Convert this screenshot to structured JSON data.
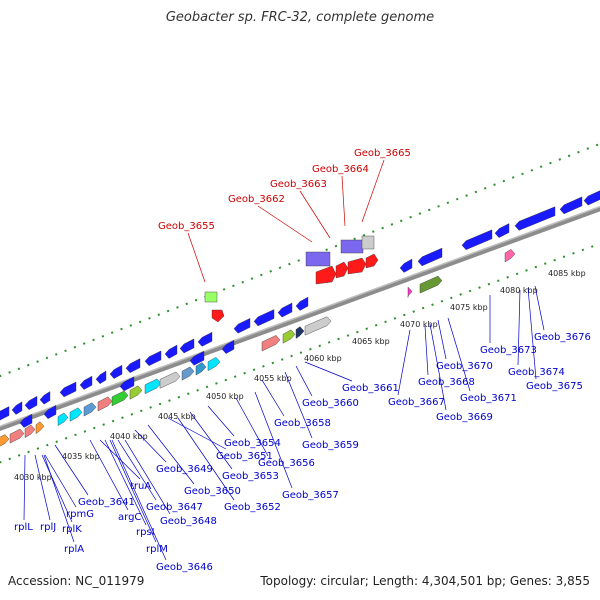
{
  "title": "Geobacter sp. FRC-32, complete genome",
  "footer": {
    "accession": "Accession: NC_011979",
    "stats": "Topology: circular; Length: 4,304,501 bp; Genes: 3,855"
  },
  "colors": {
    "backbone": "#8c8c8c",
    "tick": "#2f8f2f",
    "label_blue": "#0000cc",
    "label_red": "#cc0000"
  },
  "scale_labels": [
    "4030 kbp",
    "4035 kbp",
    "4040 kbp",
    "4045 kbp",
    "4050 kbp",
    "4055 kbp",
    "4060 kbp",
    "4065 kbp",
    "4070 kbp",
    "4075 kbp",
    "4080 kbp",
    "4085 kbp"
  ],
  "blue_labels": [
    "rplL",
    "rplJ",
    "rplK",
    "rplA",
    "rpmG",
    "Geob_3641",
    "argC",
    "truA",
    "rpsI",
    "rplM",
    "Geob_3646",
    "Geob_3647",
    "Geob_3648",
    "Geob_3649",
    "Geob_3650",
    "Geob_3651",
    "Geob_3652",
    "Geob_3653",
    "Geob_3654",
    "Geob_3656",
    "Geob_3657",
    "Geob_3658",
    "Geob_3659",
    "Geob_3660",
    "Geob_3661",
    "Geob_3667",
    "Geob_3668",
    "Geob_3669",
    "Geob_3670",
    "Geob_3671",
    "Geob_3673",
    "Geob_3674",
    "Geob_3675",
    "Geob_3676"
  ],
  "red_labels": [
    "Geob_3655",
    "Geob_3662",
    "Geob_3663",
    "Geob_3664",
    "Geob_3665"
  ]
}
